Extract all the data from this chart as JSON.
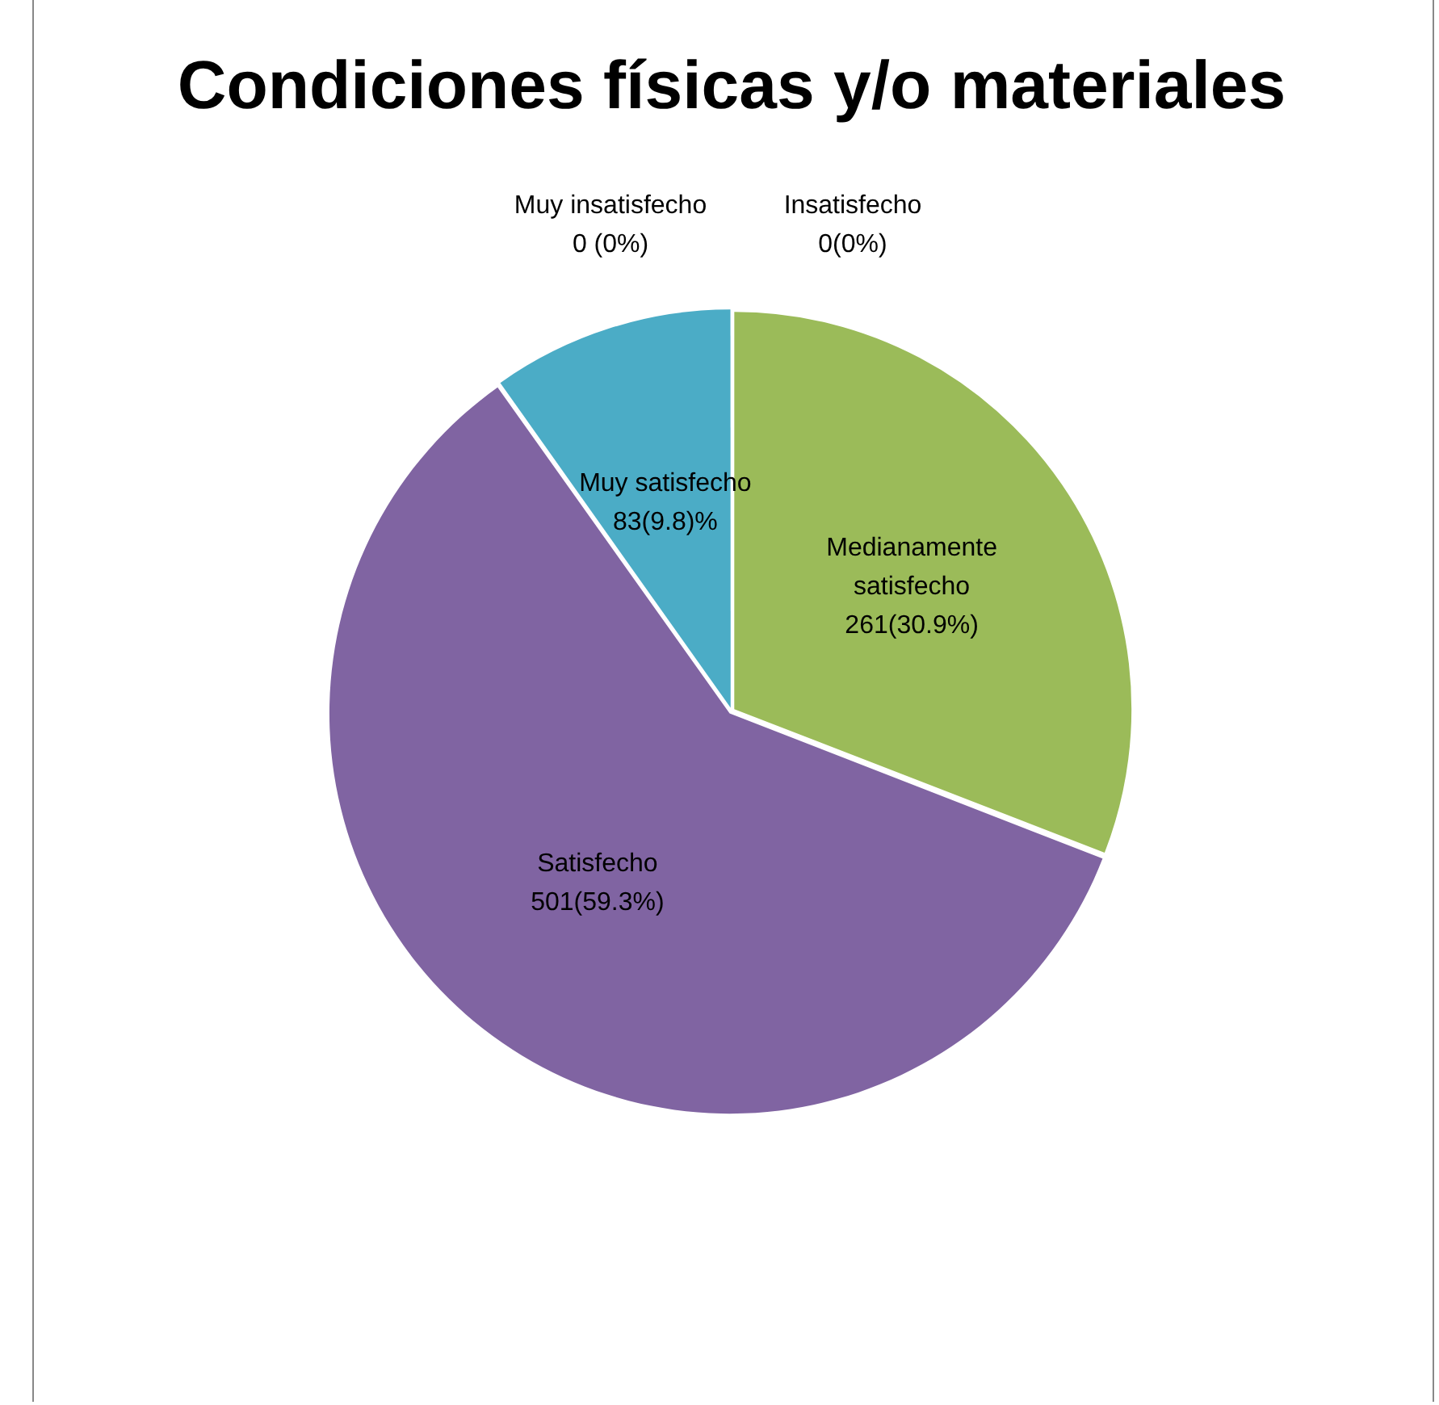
{
  "chart_data": {
    "type": "pie",
    "title": "Condiciones físicas y/o materiales",
    "categories": [
      "Muy insatisfecho",
      "Insatisfecho",
      "Medianamente satisfecho",
      "Satisfecho",
      "Muy satisfecho"
    ],
    "values": [
      0,
      0,
      261,
      501,
      83
    ],
    "colors": [
      "#4f81bd",
      "#c0504d",
      "#9bbb59",
      "#8064a2",
      "#4bacc6"
    ],
    "value_labels": [
      "0 (0%)",
      "0(0%)",
      "261(30.9%)",
      "501(59.3%)",
      "83(9.8)%"
    ],
    "legend": false
  }
}
